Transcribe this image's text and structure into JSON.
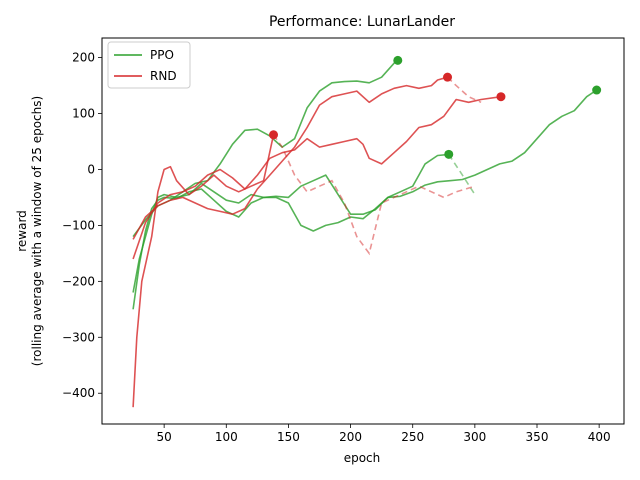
{
  "chart_data": {
    "type": "line",
    "title": "Performance: LunarLander",
    "xlabel": "epoch",
    "ylabel_line1": "reward",
    "ylabel_line2": "(rolling average with a window of 25 epochs)",
    "xlim": [
      0,
      420
    ],
    "ylim": [
      -455,
      235
    ],
    "xticks": [
      50,
      100,
      150,
      200,
      250,
      300,
      350,
      400
    ],
    "yticks": [
      -400,
      -300,
      -200,
      -100,
      0,
      100,
      200
    ],
    "grid": false,
    "legend_position": "top-left",
    "legend": [
      {
        "name": "PPO",
        "color": "#2ca02c"
      },
      {
        "name": "RND",
        "color": "#d62728"
      }
    ],
    "series": [
      {
        "name": "PPO",
        "group": "PPO",
        "color": "#2ca02c",
        "solid": [
          [
            25,
            -250
          ],
          [
            30,
            -170
          ],
          [
            35,
            -110
          ],
          [
            40,
            -70
          ],
          [
            45,
            -55
          ],
          [
            50,
            -50
          ],
          [
            60,
            -52
          ],
          [
            70,
            -40
          ],
          [
            80,
            -35
          ],
          [
            90,
            -55
          ],
          [
            100,
            -75
          ],
          [
            110,
            -85
          ],
          [
            120,
            -60
          ],
          [
            130,
            -50
          ],
          [
            140,
            -48
          ],
          [
            150,
            -50
          ],
          [
            160,
            -30
          ],
          [
            170,
            -20
          ],
          [
            180,
            -10
          ],
          [
            190,
            -45
          ],
          [
            200,
            -80
          ],
          [
            210,
            -80
          ],
          [
            220,
            -72
          ],
          [
            230,
            -50
          ],
          [
            240,
            -48
          ],
          [
            250,
            -40
          ],
          [
            260,
            -28
          ],
          [
            270,
            -22
          ],
          [
            280,
            -20
          ],
          [
            290,
            -18
          ],
          [
            300,
            -10
          ],
          [
            310,
            0
          ],
          [
            320,
            10
          ],
          [
            330,
            15
          ],
          [
            340,
            30
          ],
          [
            350,
            55
          ],
          [
            360,
            80
          ],
          [
            370,
            95
          ],
          [
            380,
            105
          ],
          [
            390,
            130
          ],
          [
            398,
            142
          ]
        ],
        "dashed": [],
        "end": [
          398,
          142
        ]
      },
      {
        "name": "PPO",
        "group": "PPO",
        "color": "#2ca02c",
        "solid": [
          [
            25,
            -220
          ],
          [
            30,
            -160
          ],
          [
            35,
            -120
          ],
          [
            40,
            -80
          ],
          [
            45,
            -50
          ],
          [
            50,
            -45
          ],
          [
            60,
            -50
          ],
          [
            70,
            -45
          ],
          [
            80,
            -25
          ],
          [
            90,
            -40
          ],
          [
            100,
            -55
          ],
          [
            110,
            -60
          ],
          [
            120,
            -45
          ],
          [
            130,
            -50
          ],
          [
            140,
            -50
          ],
          [
            150,
            -60
          ],
          [
            160,
            -100
          ],
          [
            170,
            -110
          ],
          [
            180,
            -100
          ],
          [
            190,
            -95
          ],
          [
            200,
            -85
          ],
          [
            210,
            -88
          ],
          [
            220,
            -70
          ],
          [
            230,
            -50
          ],
          [
            240,
            -40
          ],
          [
            250,
            -30
          ],
          [
            255,
            -10
          ],
          [
            260,
            10
          ],
          [
            270,
            25
          ],
          [
            279,
            27
          ]
        ],
        "dashed": [
          [
            279,
            27
          ],
          [
            290,
            -10
          ],
          [
            300,
            -45
          ]
        ],
        "end": [
          279,
          27
        ]
      },
      {
        "name": "PPO",
        "group": "PPO",
        "color": "#2ca02c",
        "solid": [
          [
            25,
            -120
          ],
          [
            35,
            -90
          ],
          [
            45,
            -65
          ],
          [
            55,
            -55
          ],
          [
            65,
            -40
          ],
          [
            75,
            -25
          ],
          [
            85,
            -20
          ],
          [
            95,
            10
          ],
          [
            105,
            45
          ],
          [
            115,
            70
          ],
          [
            125,
            72
          ],
          [
            135,
            60
          ],
          [
            145,
            40
          ],
          [
            155,
            55
          ],
          [
            165,
            110
          ],
          [
            175,
            140
          ],
          [
            185,
            155
          ],
          [
            195,
            157
          ],
          [
            205,
            158
          ],
          [
            215,
            155
          ],
          [
            225,
            165
          ],
          [
            235,
            190
          ],
          [
            238,
            195
          ]
        ],
        "dashed": [],
        "end": [
          238,
          195
        ]
      },
      {
        "name": "RND",
        "group": "RND",
        "color": "#d62728",
        "solid": [
          [
            25,
            -425
          ],
          [
            28,
            -300
          ],
          [
            32,
            -200
          ],
          [
            40,
            -120
          ],
          [
            45,
            -40
          ],
          [
            50,
            0
          ],
          [
            55,
            5
          ],
          [
            60,
            -20
          ],
          [
            70,
            -45
          ],
          [
            80,
            -30
          ],
          [
            90,
            -10
          ],
          [
            100,
            -30
          ],
          [
            110,
            -40
          ],
          [
            120,
            -30
          ],
          [
            130,
            -20
          ],
          [
            138,
            62
          ]
        ],
        "dashed": [
          [
            138,
            62
          ],
          [
            145,
            40
          ],
          [
            155,
            -10
          ],
          [
            165,
            -40
          ],
          [
            175,
            -30
          ],
          [
            185,
            -20
          ],
          [
            195,
            -60
          ],
          [
            205,
            -120
          ],
          [
            215,
            -150
          ],
          [
            225,
            -60
          ],
          [
            235,
            -50
          ],
          [
            245,
            -40
          ],
          [
            255,
            -30
          ],
          [
            265,
            -40
          ],
          [
            275,
            -50
          ],
          [
            285,
            -40
          ],
          [
            300,
            -30
          ]
        ],
        "end": [
          138,
          62
        ]
      },
      {
        "name": "RND",
        "group": "RND",
        "color": "#d62728",
        "solid": [
          [
            25,
            -125
          ],
          [
            35,
            -85
          ],
          [
            45,
            -65
          ],
          [
            55,
            -55
          ],
          [
            65,
            -50
          ],
          [
            75,
            -60
          ],
          [
            85,
            -70
          ],
          [
            95,
            -75
          ],
          [
            105,
            -80
          ],
          [
            115,
            -70
          ],
          [
            125,
            -35
          ],
          [
            135,
            -10
          ],
          [
            145,
            15
          ],
          [
            155,
            40
          ],
          [
            165,
            75
          ],
          [
            175,
            115
          ],
          [
            185,
            130
          ],
          [
            195,
            135
          ],
          [
            205,
            140
          ],
          [
            215,
            120
          ],
          [
            225,
            135
          ],
          [
            235,
            145
          ],
          [
            245,
            150
          ],
          [
            255,
            145
          ],
          [
            265,
            150
          ],
          [
            270,
            160
          ],
          [
            278,
            165
          ]
        ],
        "dashed": [
          [
            278,
            165
          ],
          [
            285,
            150
          ],
          [
            295,
            130
          ],
          [
            305,
            120
          ]
        ],
        "end": [
          278,
          165
        ]
      },
      {
        "name": "RND",
        "group": "RND",
        "color": "#d62728",
        "solid": [
          [
            25,
            -160
          ],
          [
            35,
            -95
          ],
          [
            45,
            -60
          ],
          [
            55,
            -45
          ],
          [
            65,
            -40
          ],
          [
            75,
            -30
          ],
          [
            85,
            -10
          ],
          [
            95,
            0
          ],
          [
            105,
            -15
          ],
          [
            115,
            -35
          ],
          [
            125,
            -10
          ],
          [
            135,
            20
          ],
          [
            145,
            30
          ],
          [
            155,
            35
          ],
          [
            165,
            55
          ],
          [
            175,
            40
          ],
          [
            185,
            45
          ],
          [
            195,
            50
          ],
          [
            205,
            55
          ],
          [
            210,
            45
          ],
          [
            215,
            20
          ],
          [
            225,
            10
          ],
          [
            235,
            30
          ],
          [
            245,
            50
          ],
          [
            255,
            75
          ],
          [
            265,
            80
          ],
          [
            275,
            95
          ],
          [
            285,
            125
          ],
          [
            295,
            120
          ],
          [
            305,
            125
          ],
          [
            321,
            130
          ]
        ],
        "dashed": [],
        "end": [
          321,
          130
        ]
      }
    ]
  }
}
